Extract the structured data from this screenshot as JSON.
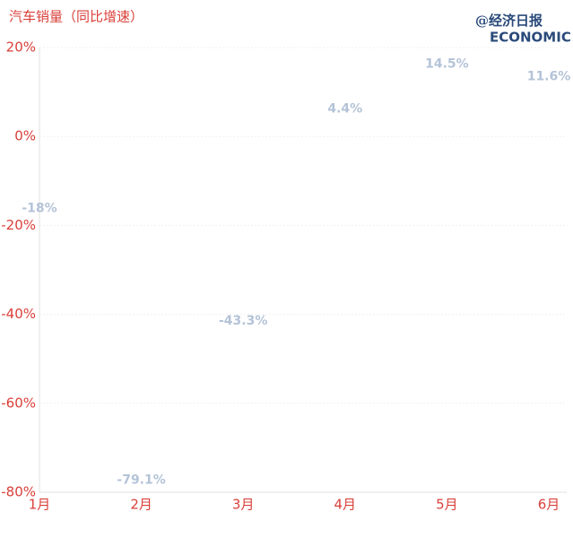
{
  "chart_data": {
    "type": "line",
    "title": "汽车销量（同比增速）",
    "logo": "@经济日报",
    "logo_subtitle": "ECONOMIC DAILY",
    "categories": [
      "1月",
      "2月",
      "3月",
      "4月",
      "5月",
      "6月"
    ],
    "values": [
      -18,
      -79.1,
      -43.3,
      4.4,
      14.5,
      11.6
    ],
    "value_labels": [
      "-18%",
      "-79.1%",
      "-43.3%",
      "4.4%",
      "14.5%",
      "11.6%"
    ],
    "color": "#b4c3d8",
    "ylim": [
      -80,
      20
    ],
    "yticks": [
      {
        "value": -80,
        "label": "-80%"
      },
      {
        "value": -60,
        "label": "-60%"
      },
      {
        "value": -40,
        "label": "-40%"
      },
      {
        "value": -20,
        "label": "-20%"
      },
      {
        "value": 0,
        "label": "0%"
      },
      {
        "value": 20,
        "label": "20%"
      }
    ],
    "grid": true
  }
}
